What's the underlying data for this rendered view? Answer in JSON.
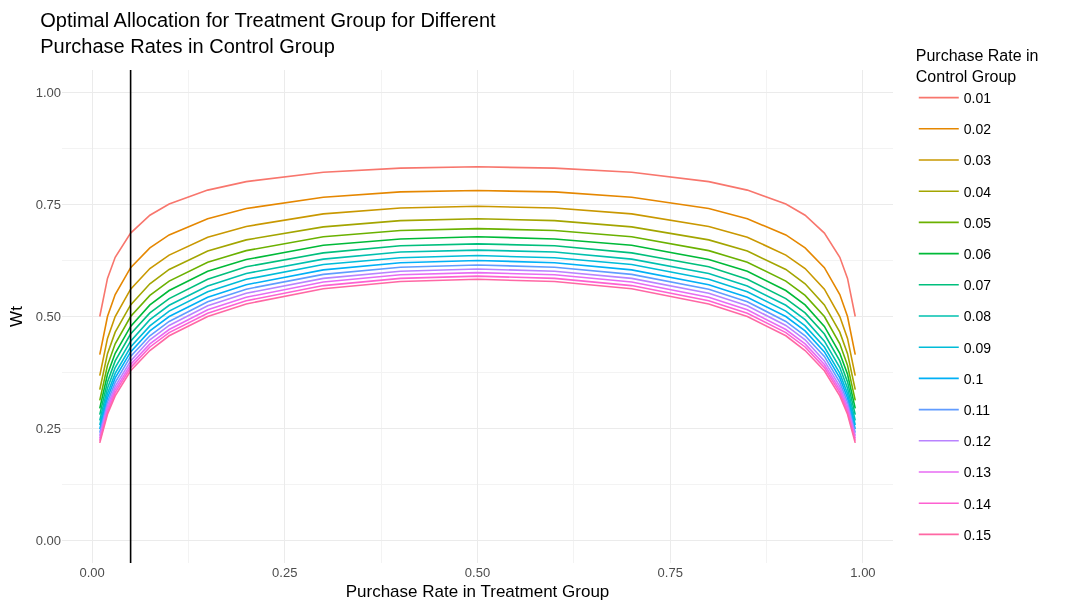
{
  "chart_data": {
    "type": "line",
    "title": "Optimal Allocation for Treatment Group for Different\nPurchase Rates in Control Group",
    "xlabel": "Purchase Rate in Treatment Group",
    "ylabel": "Wt",
    "legend_title": "Purchase Rate in\nControl Group",
    "x": [
      0.01,
      0.02,
      0.03,
      0.05,
      0.075,
      0.1,
      0.15,
      0.2,
      0.3,
      0.4,
      0.5,
      0.6,
      0.7,
      0.8,
      0.85,
      0.9,
      0.925,
      0.95,
      0.97,
      0.98,
      0.99
    ],
    "series": [
      {
        "name": "0.01",
        "color": "#f8766d",
        "values": [
          0.5,
          0.585,
          0.632,
          0.686,
          0.726,
          0.751,
          0.782,
          0.801,
          0.822,
          0.831,
          0.834,
          0.831,
          0.822,
          0.801,
          0.782,
          0.751,
          0.726,
          0.686,
          0.632,
          0.585,
          0.5
        ]
      },
      {
        "name": "0.02",
        "color": "#e58700",
        "values": [
          0.415,
          0.5,
          0.549,
          0.609,
          0.653,
          0.682,
          0.718,
          0.741,
          0.766,
          0.778,
          0.781,
          0.778,
          0.766,
          0.741,
          0.718,
          0.682,
          0.653,
          0.609,
          0.549,
          0.5,
          0.415
        ]
      },
      {
        "name": "0.03",
        "color": "#c99800",
        "values": [
          0.368,
          0.451,
          0.5,
          0.561,
          0.607,
          0.637,
          0.677,
          0.701,
          0.729,
          0.742,
          0.746,
          0.742,
          0.729,
          0.701,
          0.677,
          0.637,
          0.607,
          0.561,
          0.5,
          0.451,
          0.368
        ]
      },
      {
        "name": "0.04",
        "color": "#a3a500",
        "values": [
          0.337,
          0.417,
          0.465,
          0.526,
          0.573,
          0.605,
          0.646,
          0.671,
          0.7,
          0.714,
          0.718,
          0.714,
          0.7,
          0.671,
          0.646,
          0.605,
          0.573,
          0.526,
          0.465,
          0.417,
          0.337
        ]
      },
      {
        "name": "0.05",
        "color": "#6bb100",
        "values": [
          0.313,
          0.391,
          0.439,
          0.5,
          0.547,
          0.579,
          0.621,
          0.647,
          0.678,
          0.692,
          0.696,
          0.692,
          0.678,
          0.647,
          0.621,
          0.579,
          0.547,
          0.5,
          0.439,
          0.391,
          0.313
        ]
      },
      {
        "name": "0.06",
        "color": "#00ba38",
        "values": [
          0.295,
          0.371,
          0.418,
          0.478,
          0.526,
          0.558,
          0.601,
          0.627,
          0.659,
          0.673,
          0.678,
          0.673,
          0.659,
          0.627,
          0.601,
          0.558,
          0.526,
          0.478,
          0.418,
          0.371,
          0.295
        ]
      },
      {
        "name": "0.07",
        "color": "#00bf7d",
        "values": [
          0.281,
          0.354,
          0.401,
          0.461,
          0.508,
          0.54,
          0.583,
          0.611,
          0.642,
          0.658,
          0.662,
          0.658,
          0.642,
          0.611,
          0.583,
          0.54,
          0.508,
          0.461,
          0.401,
          0.354,
          0.281
        ]
      },
      {
        "name": "0.08",
        "color": "#00c0af",
        "values": [
          0.268,
          0.34,
          0.386,
          0.445,
          0.493,
          0.525,
          0.568,
          0.596,
          0.628,
          0.644,
          0.648,
          0.644,
          0.628,
          0.596,
          0.568,
          0.525,
          0.493,
          0.445,
          0.386,
          0.34,
          0.268
        ]
      },
      {
        "name": "0.09",
        "color": "#00bcd8",
        "values": [
          0.258,
          0.328,
          0.373,
          0.432,
          0.479,
          0.512,
          0.555,
          0.583,
          0.616,
          0.631,
          0.636,
          0.631,
          0.616,
          0.583,
          0.555,
          0.512,
          0.479,
          0.432,
          0.373,
          0.328,
          0.258
        ]
      },
      {
        "name": "0.1",
        "color": "#00b0f6",
        "values": [
          0.249,
          0.318,
          0.363,
          0.421,
          0.468,
          0.5,
          0.543,
          0.571,
          0.604,
          0.62,
          0.625,
          0.62,
          0.604,
          0.571,
          0.543,
          0.5,
          0.468,
          0.421,
          0.363,
          0.318,
          0.249
        ]
      },
      {
        "name": "0.11",
        "color": "#619cff",
        "values": [
          0.241,
          0.309,
          0.353,
          0.411,
          0.457,
          0.489,
          0.533,
          0.561,
          0.594,
          0.61,
          0.615,
          0.61,
          0.594,
          0.561,
          0.533,
          0.489,
          0.457,
          0.411,
          0.353,
          0.309,
          0.241
        ]
      },
      {
        "name": "0.12",
        "color": "#b983ff",
        "values": [
          0.234,
          0.301,
          0.344,
          0.401,
          0.448,
          0.48,
          0.524,
          0.552,
          0.585,
          0.601,
          0.606,
          0.601,
          0.585,
          0.552,
          0.524,
          0.48,
          0.448,
          0.401,
          0.344,
          0.301,
          0.234
        ]
      },
      {
        "name": "0.13",
        "color": "#e76bf3",
        "values": [
          0.228,
          0.294,
          0.337,
          0.393,
          0.439,
          0.471,
          0.515,
          0.543,
          0.577,
          0.593,
          0.598,
          0.593,
          0.577,
          0.543,
          0.515,
          0.471,
          0.439,
          0.393,
          0.337,
          0.294,
          0.228
        ]
      },
      {
        "name": "0.14",
        "color": "#fd61d1",
        "values": [
          0.223,
          0.287,
          0.33,
          0.386,
          0.432,
          0.464,
          0.507,
          0.535,
          0.569,
          0.585,
          0.59,
          0.585,
          0.569,
          0.535,
          0.507,
          0.464,
          0.432,
          0.386,
          0.33,
          0.287,
          0.223
        ]
      },
      {
        "name": "0.15",
        "color": "#ff67a4",
        "values": [
          0.218,
          0.282,
          0.323,
          0.379,
          0.424,
          0.457,
          0.5,
          0.528,
          0.562,
          0.578,
          0.583,
          0.578,
          0.562,
          0.528,
          0.5,
          0.457,
          0.424,
          0.379,
          0.323,
          0.282,
          0.218
        ]
      }
    ],
    "xlim": [
      -0.039,
      1.039
    ],
    "ylim": [
      -0.05,
      1.05
    ],
    "xticks": [
      {
        "value": 0,
        "label": "0.00"
      },
      0.25,
      {
        "value": 0.5,
        "label": "0.50"
      },
      0.75,
      {
        "value": 1,
        "label": "1.00"
      }
    ],
    "yticks": [
      {
        "value": 0,
        "label": "0.00"
      },
      0.25,
      {
        "value": 0.5,
        "label": "0.50"
      },
      0.75,
      {
        "value": 1,
        "label": "1.00"
      }
    ],
    "ref_lines": [
      {
        "axis": "x",
        "value": 0.05,
        "color": "#000000"
      }
    ],
    "grid": true,
    "legend": "right",
    "line_style": "solid",
    "marker": "none"
  }
}
